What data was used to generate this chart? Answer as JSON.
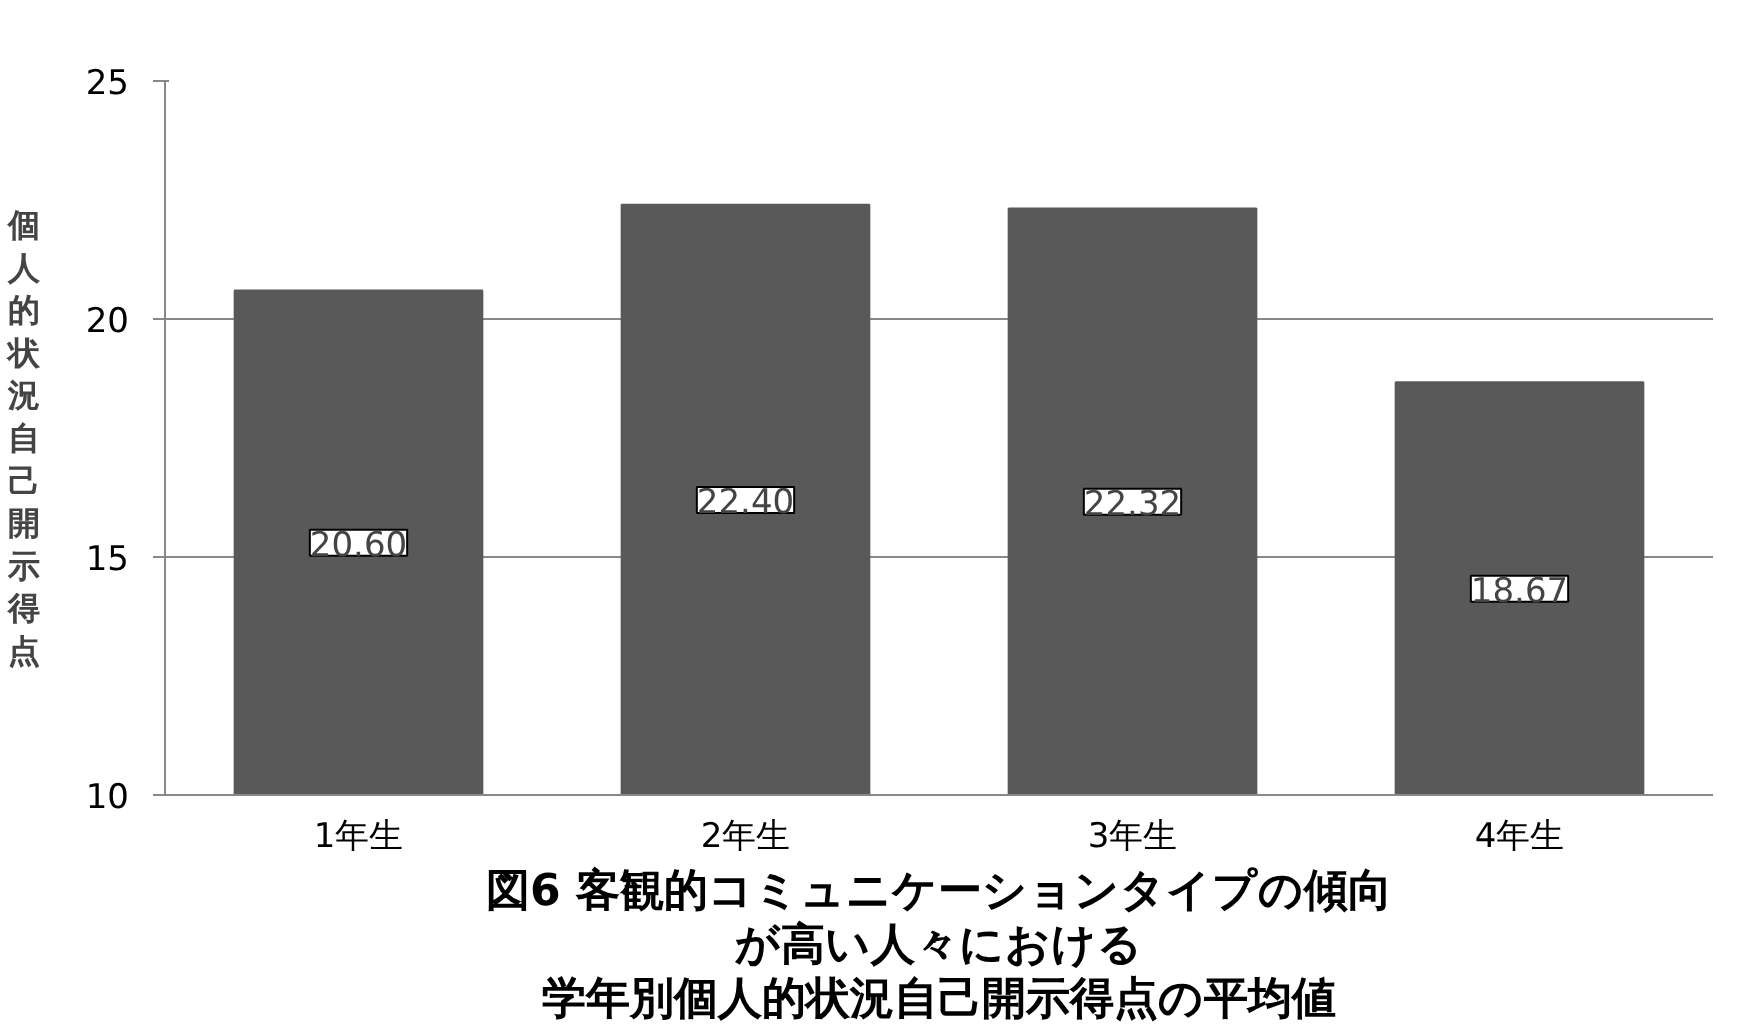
{
  "chart_data": {
    "type": "bar",
    "title": "図6 客観的コミュニケーションタイプの傾向が高い人々における学年別個人的状況自己開示得点の平均値",
    "ylabel": "個人的状況自己開示得点",
    "categories": [
      "1年生",
      "2年生",
      "3年生",
      "4年生"
    ],
    "values": [
      20.6,
      22.4,
      22.32,
      18.67
    ],
    "value_labels": [
      "20.60",
      "22.40",
      "22.32",
      "18.67"
    ],
    "color": "#595959",
    "ylim": [
      10,
      25
    ],
    "yticks": [
      10,
      15,
      20,
      25
    ],
    "grid": "y",
    "legend": false
  }
}
